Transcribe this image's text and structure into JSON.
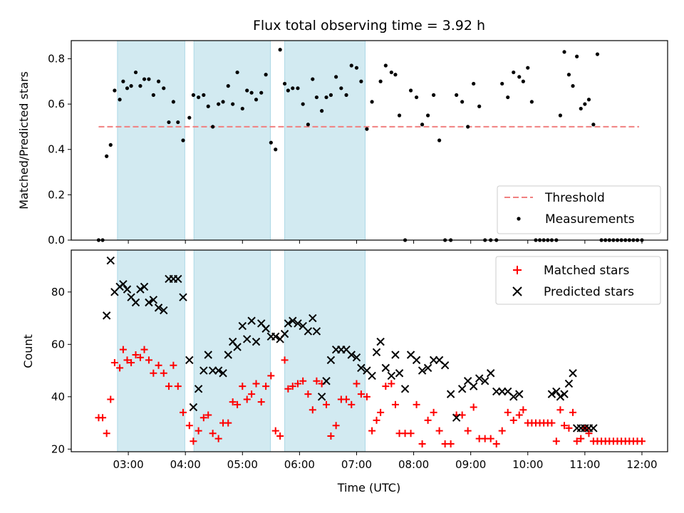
{
  "chart_data": [
    {
      "type": "scatter",
      "title": "Flux total observing time = 3.92 h",
      "xlabel": "",
      "ylabel": "Matched/Predicted stars",
      "xlim": [
        2.0,
        12.45
      ],
      "ylim": [
        0.0,
        0.88
      ],
      "yticks": [
        0.0,
        0.2,
        0.4,
        0.6,
        0.8
      ],
      "xticks": [
        "03:00",
        "04:00",
        "05:00",
        "06:00",
        "07:00",
        "08:00",
        "09:00",
        "10:00",
        "11:00",
        "12:00"
      ],
      "show_xticklabels": false,
      "legend_position": "lower-right",
      "shaded_intervals": [
        [
          2.81,
          3.99
        ],
        [
          4.15,
          5.49
        ],
        [
          5.74,
          7.15
        ]
      ],
      "shade_color": "#add8e6",
      "threshold": {
        "name": "Threshold",
        "value": 0.5,
        "x_range": [
          2.48,
          11.95
        ],
        "color": "#f08080"
      },
      "series": [
        {
          "name": "Measurements",
          "color": "#000000",
          "x": [
            2.48,
            2.55,
            2.62,
            2.69,
            2.76,
            2.85,
            2.91,
            2.98,
            3.05,
            3.13,
            3.21,
            3.28,
            3.36,
            3.44,
            3.53,
            3.62,
            3.71,
            3.79,
            3.87,
            3.96,
            4.07,
            4.14,
            4.23,
            4.32,
            4.4,
            4.48,
            4.58,
            4.66,
            4.75,
            4.83,
            4.91,
            5.0,
            5.08,
            5.16,
            5.24,
            5.33,
            5.41,
            5.5,
            5.58,
            5.66,
            5.74,
            5.8,
            5.88,
            5.97,
            6.06,
            6.15,
            6.23,
            6.3,
            6.39,
            6.47,
            6.55,
            6.64,
            6.73,
            6.82,
            6.91,
            7.0,
            7.08,
            7.18,
            7.27,
            7.42,
            7.51,
            7.61,
            7.68,
            7.75,
            7.85,
            7.95,
            8.05,
            8.15,
            8.25,
            8.35,
            8.45,
            8.55,
            8.65,
            8.75,
            8.85,
            8.95,
            9.05,
            9.15,
            9.25,
            9.35,
            9.45,
            9.55,
            9.65,
            9.75,
            9.85,
            9.92,
            10.0,
            10.07,
            10.14,
            10.21,
            10.28,
            10.35,
            10.42,
            10.5,
            10.57,
            10.64,
            10.72,
            10.79,
            10.86,
            10.93,
            11.0,
            11.07,
            11.15,
            11.22,
            11.29,
            11.36,
            11.43,
            11.5,
            11.57,
            11.64,
            11.71,
            11.78,
            11.85,
            11.92,
            12.0
          ],
          "y": [
            0.0,
            0.0,
            0.37,
            0.42,
            0.66,
            0.62,
            0.7,
            0.67,
            0.68,
            0.74,
            0.68,
            0.71,
            0.71,
            0.64,
            0.7,
            0.67,
            0.52,
            0.61,
            0.52,
            0.44,
            0.54,
            0.64,
            0.63,
            0.64,
            0.59,
            0.5,
            0.6,
            0.61,
            0.68,
            0.6,
            0.74,
            0.58,
            0.66,
            0.65,
            0.62,
            0.65,
            0.73,
            0.43,
            0.4,
            0.84,
            0.69,
            0.66,
            0.67,
            0.67,
            0.6,
            0.51,
            0.71,
            0.63,
            0.57,
            0.63,
            0.64,
            0.72,
            0.67,
            0.64,
            0.77,
            0.76,
            0.7,
            0.49,
            0.61,
            0.7,
            0.77,
            0.74,
            0.73,
            0.55,
            0.0,
            0.66,
            0.63,
            0.51,
            0.55,
            0.64,
            0.44,
            0.0,
            0.0,
            0.64,
            0.61,
            0.5,
            0.69,
            0.59,
            0.0,
            0.0,
            0.0,
            0.69,
            0.63,
            0.74,
            0.72,
            0.7,
            0.76,
            0.61,
            0.0,
            0.0,
            0.0,
            0.0,
            0.0,
            0.0,
            0.55,
            0.83,
            0.73,
            0.68,
            0.81,
            0.58,
            0.6,
            0.62,
            0.51,
            0.82,
            0.0,
            0.0,
            0.0,
            0.0,
            0.0,
            0.0,
            0.0,
            0.0,
            0.0,
            0.0,
            0.0
          ]
        }
      ],
      "legend": [
        "Threshold",
        "Measurements"
      ]
    },
    {
      "type": "scatter",
      "title": "",
      "xlabel": "Time (UTC)",
      "ylabel": "Count",
      "xlim": [
        2.0,
        12.45
      ],
      "ylim": [
        19.0,
        96.0
      ],
      "yticks": [
        20,
        40,
        60,
        80
      ],
      "xticks": [
        "03:00",
        "04:00",
        "05:00",
        "06:00",
        "07:00",
        "08:00",
        "09:00",
        "10:00",
        "11:00",
        "12:00"
      ],
      "legend_position": "top-right",
      "shaded_intervals": [
        [
          2.81,
          3.99
        ],
        [
          4.15,
          5.49
        ],
        [
          5.74,
          7.15
        ]
      ],
      "shade_color": "#add8e6",
      "series": [
        {
          "name": "Matched stars",
          "marker": "plus",
          "color": "#ff0000",
          "x": [
            2.48,
            2.55,
            2.62,
            2.69,
            2.76,
            2.85,
            2.91,
            2.98,
            3.05,
            3.13,
            3.21,
            3.28,
            3.36,
            3.44,
            3.53,
            3.62,
            3.71,
            3.79,
            3.87,
            3.96,
            4.07,
            4.14,
            4.23,
            4.32,
            4.4,
            4.48,
            4.58,
            4.66,
            4.75,
            4.83,
            4.91,
            5.0,
            5.08,
            5.16,
            5.24,
            5.33,
            5.41,
            5.5,
            5.58,
            5.66,
            5.74,
            5.8,
            5.88,
            5.97,
            6.06,
            6.15,
            6.23,
            6.3,
            6.39,
            6.47,
            6.55,
            6.64,
            6.73,
            6.82,
            6.91,
            7.0,
            7.08,
            7.18,
            7.27,
            7.35,
            7.42,
            7.51,
            7.61,
            7.68,
            7.75,
            7.85,
            7.95,
            8.05,
            8.15,
            8.25,
            8.35,
            8.45,
            8.55,
            8.65,
            8.75,
            8.85,
            8.95,
            9.05,
            9.15,
            9.25,
            9.35,
            9.45,
            9.55,
            9.65,
            9.75,
            9.85,
            9.92,
            10.0,
            10.07,
            10.14,
            10.21,
            10.28,
            10.35,
            10.42,
            10.5,
            10.57,
            10.64,
            10.72,
            10.79,
            10.86,
            10.93,
            11.0,
            11.07,
            11.15,
            11.22,
            11.29,
            11.36,
            11.43,
            11.5,
            11.57,
            11.64,
            11.71,
            11.78,
            11.85,
            11.92,
            12.0
          ],
          "y": [
            32,
            32,
            26,
            39,
            53,
            51,
            58,
            54,
            53,
            56,
            55,
            58,
            54,
            49,
            52,
            49,
            44,
            52,
            44,
            34,
            29,
            23,
            27,
            32,
            33,
            26,
            24,
            30,
            30,
            38,
            37,
            44,
            39,
            41,
            45,
            38,
            44,
            48,
            27,
            25,
            54,
            43,
            44,
            45,
            46,
            41,
            35,
            46,
            45,
            37,
            25,
            29,
            39,
            39,
            37,
            45,
            41,
            40,
            27,
            31,
            34,
            44,
            45,
            37,
            26,
            26,
            26,
            37,
            22,
            31,
            34,
            27,
            22,
            22,
            33,
            33,
            27,
            36,
            24,
            24,
            24,
            22,
            27,
            34,
            31,
            33,
            35,
            30,
            30,
            30,
            30,
            30,
            30,
            30,
            23,
            35,
            29,
            28,
            34,
            23,
            24,
            28,
            26,
            23,
            23,
            23,
            23,
            23,
            23,
            23,
            23,
            23,
            23,
            23,
            23,
            23
          ]
        },
        {
          "name": "Predicted stars",
          "marker": "x",
          "color": "#000000",
          "x": [
            2.62,
            2.69,
            2.76,
            2.85,
            2.91,
            2.98,
            3.05,
            3.13,
            3.21,
            3.28,
            3.36,
            3.44,
            3.53,
            3.62,
            3.71,
            3.79,
            3.87,
            3.96,
            4.07,
            4.14,
            4.23,
            4.32,
            4.4,
            4.48,
            4.58,
            4.66,
            4.75,
            4.83,
            4.91,
            5.0,
            5.08,
            5.16,
            5.24,
            5.33,
            5.41,
            5.5,
            5.58,
            5.66,
            5.74,
            5.8,
            5.88,
            5.97,
            6.06,
            6.15,
            6.23,
            6.3,
            6.39,
            6.47,
            6.55,
            6.64,
            6.73,
            6.82,
            6.91,
            7.0,
            7.08,
            7.18,
            7.27,
            7.35,
            7.42,
            7.51,
            7.61,
            7.68,
            7.75,
            7.85,
            7.95,
            8.05,
            8.15,
            8.25,
            8.35,
            8.45,
            8.55,
            8.65,
            8.75,
            8.85,
            8.95,
            9.05,
            9.15,
            9.25,
            9.35,
            9.45,
            9.55,
            9.65,
            9.75,
            9.85,
            10.42,
            10.5,
            10.57,
            10.64,
            10.72,
            10.79,
            10.86,
            10.93,
            11.0,
            11.07,
            11.15
          ],
          "y": [
            71,
            92,
            80,
            82,
            83,
            81,
            78,
            76,
            81,
            82,
            76,
            77,
            74,
            73,
            85,
            85,
            85,
            78,
            54,
            36,
            43,
            50,
            56,
            50,
            50,
            49,
            56,
            61,
            59,
            67,
            62,
            69,
            61,
            68,
            66,
            63,
            63,
            62,
            64,
            68,
            69,
            68,
            67,
            65,
            70,
            65,
            40,
            46,
            54,
            58,
            58,
            58,
            56,
            55,
            51,
            50,
            48,
            57,
            61,
            51,
            48,
            56,
            49,
            43,
            56,
            54,
            50,
            51,
            54,
            54,
            52,
            41,
            32,
            43,
            46,
            44,
            47,
            46,
            49,
            42,
            42,
            42,
            40,
            41,
            41,
            42,
            40,
            41,
            45,
            49,
            28,
            28,
            28,
            28,
            28
          ]
        }
      ],
      "legend": [
        "Matched stars",
        "Predicted stars"
      ]
    }
  ]
}
